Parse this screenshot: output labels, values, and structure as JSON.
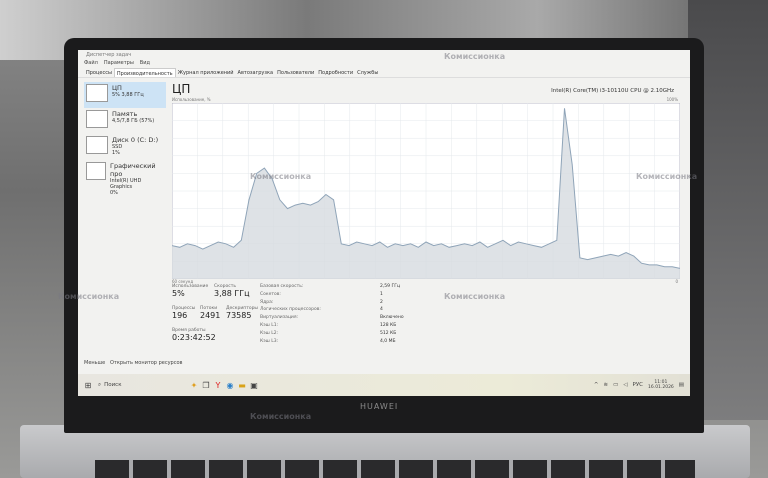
{
  "window": {
    "title": "Диспетчер задач",
    "menu": [
      "Файл",
      "Параметры",
      "Вид"
    ],
    "tabs": [
      "Процессы",
      "Производительность",
      "Журнал приложений",
      "Автозагрузка",
      "Пользователи",
      "Подробности",
      "Службы"
    ],
    "active_tab": 1
  },
  "sidebar": [
    {
      "name": "ЦП",
      "sub": "5% 3,88 ГГц",
      "sub2": ""
    },
    {
      "name": "Память",
      "sub": "4,5/7,8 ГБ (57%)",
      "sub2": ""
    },
    {
      "name": "Диск 0 (C: D:)",
      "sub": "SSD",
      "sub2": "1%"
    },
    {
      "name": "Графический про",
      "sub": "Intel(R) UHD Graphics",
      "sub2": "0%"
    }
  ],
  "main": {
    "title": "ЦП",
    "cpu_model": "Intel(R) Core(TM) i3-10110U CPU @ 2.10GHz",
    "graph_label": "Использование, %",
    "max_label": "100%",
    "time_label": "60 секунд",
    "zero_label": "0",
    "stats": {
      "usage_label": "Использование",
      "usage": "5%",
      "speed_label": "Скорость",
      "speed": "3,88 ГГц",
      "proc_label": "Процессы",
      "proc": "196",
      "threads_label": "Потоки",
      "threads": "2491",
      "handles_label": "Дескрипторы",
      "handles": "73585",
      "uptime_label": "Время работы",
      "uptime": "0:23:42:52"
    },
    "details": [
      [
        "Базовая скорость:",
        "2,59 ГГц"
      ],
      [
        "Сокетов:",
        "1"
      ],
      [
        "Ядра:",
        "2"
      ],
      [
        "Логических процессоров:",
        "4"
      ],
      [
        "Виртуализация:",
        "Включено"
      ],
      [
        "Кэш L1:",
        "128 КБ"
      ],
      [
        "Кэш L2:",
        "512 КБ"
      ],
      [
        "Кэш L3:",
        "4,0 МБ"
      ]
    ]
  },
  "footer": {
    "less": "Меньше",
    "monitor": "Открыть монитор ресурсов"
  },
  "taskbar": {
    "search": "Поиск",
    "lang": "РУС",
    "time": "11:01",
    "date": "16.01.2026"
  },
  "cpu_usage_history": [
    19,
    18,
    20,
    19,
    17,
    19,
    21,
    20,
    18,
    22,
    45,
    60,
    63,
    57,
    45,
    40,
    42,
    43,
    42,
    44,
    48,
    45,
    20,
    19,
    21,
    20,
    19,
    21,
    18,
    20,
    19,
    20,
    18,
    21,
    19,
    20,
    18,
    19,
    20,
    19,
    21,
    18,
    20,
    22,
    19,
    21,
    20,
    19,
    18,
    20,
    22,
    97,
    65,
    12,
    11,
    12,
    13,
    14,
    13,
    15,
    13,
    9,
    8,
    8,
    7,
    7,
    6
  ],
  "watermark": "Комиссионка",
  "device_brand": "HUAWEI",
  "colors": {
    "graph_line": "#8fa4b8",
    "graph_fill": "#d6dbe0",
    "selected": "#cde3f5"
  }
}
